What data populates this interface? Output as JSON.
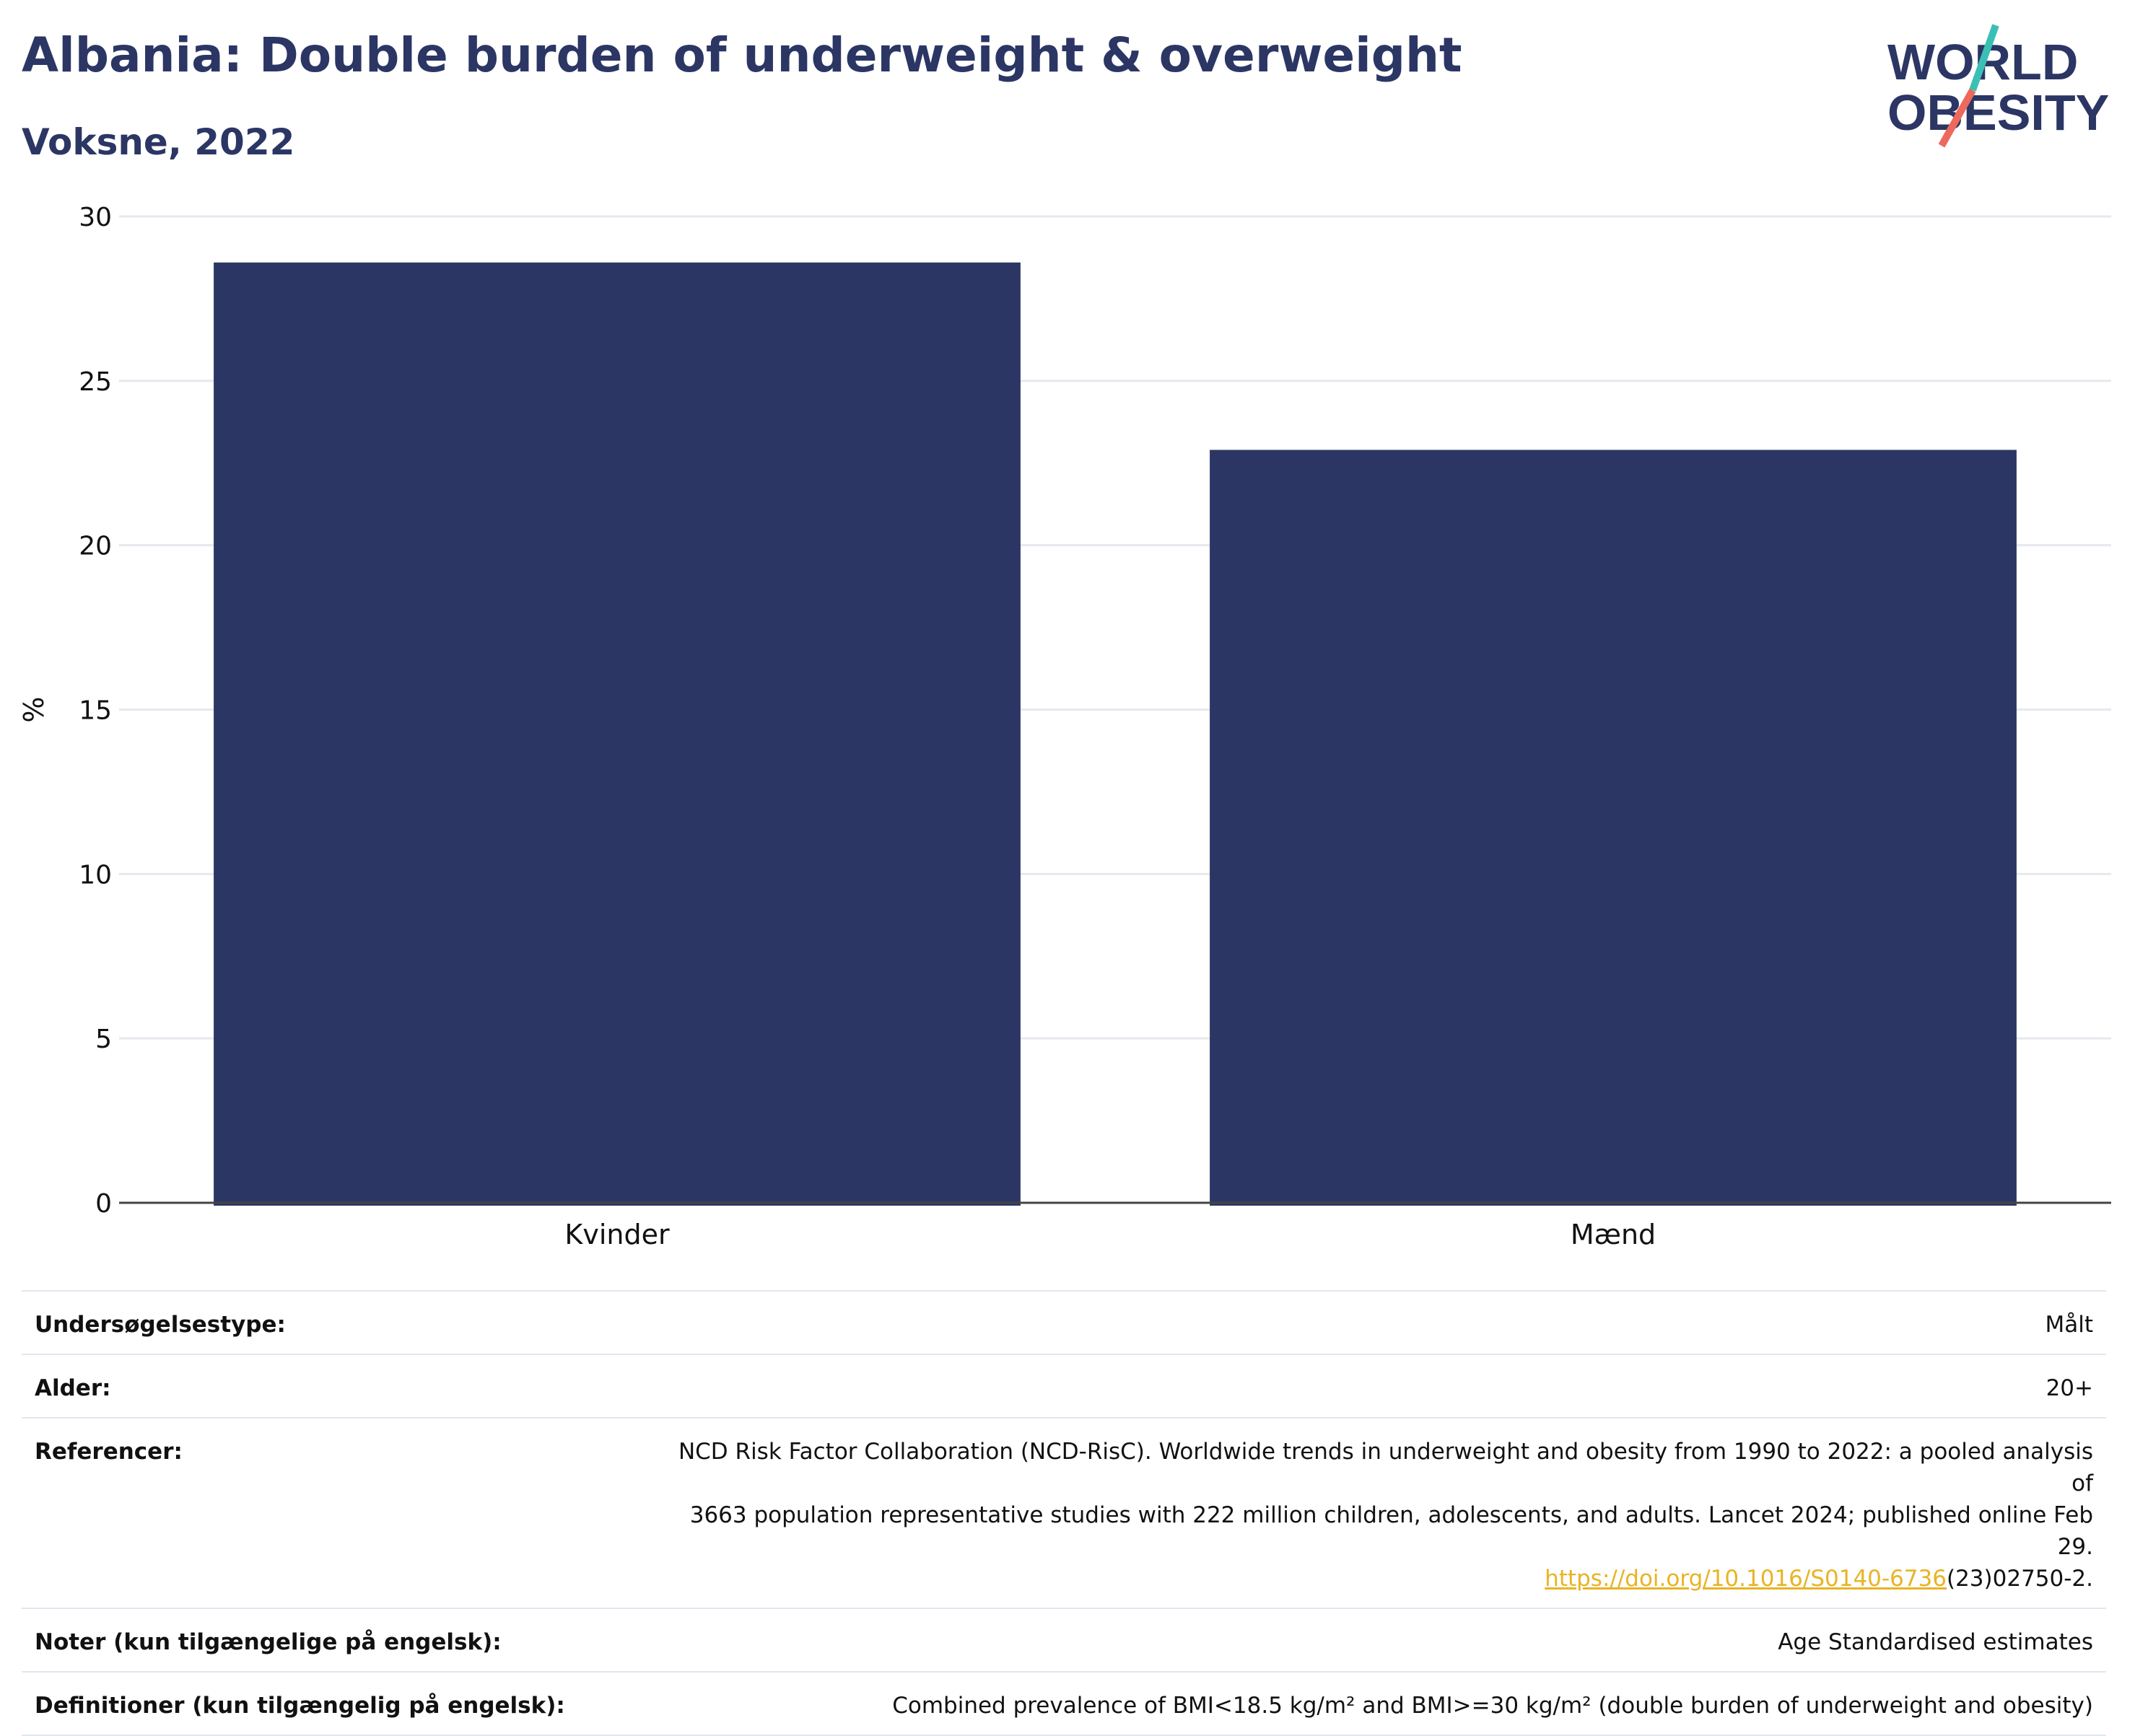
{
  "header": {
    "title": "Albania: Double burden of underweight & overweight",
    "subtitle": "Voksne, 2022"
  },
  "logo": {
    "line1": "WORLD",
    "line2": "OBESITY",
    "accent_teal": "#3bbfb5",
    "accent_coral": "#ec6a5c"
  },
  "chart_data": {
    "type": "bar",
    "categories": [
      "Kvinder",
      "Mænd"
    ],
    "values": [
      28.6,
      22.9
    ],
    "title": "",
    "xlabel": "",
    "ylabel": "%",
    "ylim": [
      0,
      30
    ],
    "yticks": [
      0,
      5,
      10,
      15,
      20,
      25,
      30
    ],
    "grid": true,
    "bar_color": "#2b3664"
  },
  "meta": {
    "survey_type_label": "Undersøgelsestype:",
    "survey_type_value": "Målt",
    "age_label": "Alder:",
    "age_value": "20+",
    "references_label": "Referencer:",
    "references_text_1": "NCD Risk Factor Collaboration (NCD-RisC). Worldwide trends in underweight and obesity from 1990 to 2022: a pooled analysis of",
    "references_text_2": "3663 population representative studies with 222 million children, adolescents, and adults. Lancet 2024; published online Feb 29.",
    "references_link": "https://doi.org/10.1016/S0140-6736",
    "references_suffix": "(23)02750-2.",
    "notes_label": "Noter (kun tilgængelige på engelsk):",
    "notes_value": "Age Standardised estimates",
    "definitions_label": "Definitioner (kun tilgængelig på engelsk):",
    "definitions_value": "Combined prevalence of BMI<18.5 kg/m² and BMI>=30 kg/m² (double burden of underweight and obesity)"
  }
}
